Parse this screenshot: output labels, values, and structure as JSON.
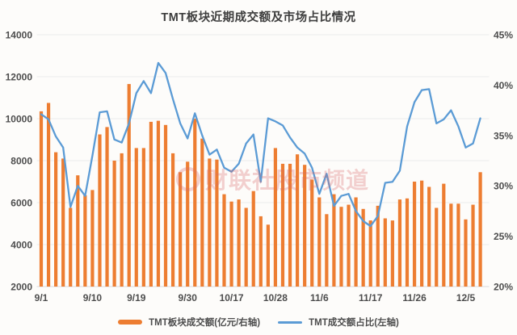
{
  "title": "TMT板块近期成交额及市场占比情况",
  "watermark": {
    "text": "财联社股市频道"
  },
  "colors": {
    "bar": "#ED7D31",
    "line": "#5B9BD5",
    "grid": "#ECECEC",
    "baseline": "#D9D9D9",
    "axis_text": "#4D4D4D",
    "title_text": "#3D3D3D",
    "watermark": "#D96A6A",
    "background": "#FDFCFA"
  },
  "chart_data": {
    "type": "combo",
    "title": "TMT板块近期成交额及市场占比情况",
    "grid": true,
    "legend_position": "bottom",
    "x_tick_labels": [
      "9/1",
      "9/10",
      "9/19",
      "9/30",
      "10/17",
      "10/28",
      "11/6",
      "11/17",
      "11/26",
      "12/5"
    ],
    "x_tick_indices": [
      0,
      7,
      13,
      20,
      26,
      32,
      38,
      45,
      51,
      58
    ],
    "left_axis": {
      "min": 2000,
      "max": 14000,
      "step": 2000,
      "ticks": [
        "14000",
        "12000",
        "10000",
        "8000",
        "6000",
        "4000",
        "2000"
      ]
    },
    "right_axis": {
      "min": 20,
      "max": 45,
      "step": 5,
      "ticks": [
        "45%",
        "40%",
        "35%",
        "30%",
        "25%",
        "20%"
      ]
    },
    "series": [
      {
        "name": "TMT板块成交额(亿元/右轴)",
        "type": "bar",
        "axis": "left",
        "values": [
          10350,
          10750,
          8400,
          8100,
          5750,
          7300,
          6350,
          6600,
          9250,
          9600,
          8000,
          8350,
          11650,
          8600,
          8600,
          9850,
          9900,
          9700,
          8350,
          7450,
          7950,
          10000,
          9050,
          8100,
          8050,
          6400,
          6050,
          6150,
          5750,
          6550,
          5350,
          4950,
          8600,
          7850,
          7850,
          8300,
          7800,
          7100,
          6250,
          5450,
          6400,
          5800,
          5900,
          6250,
          5700,
          5150,
          5850,
          5250,
          5150,
          6150,
          6200,
          7000,
          7050,
          6750,
          5750,
          6900,
          5950,
          5950,
          5200,
          5900,
          7450
        ]
      },
      {
        "name": "TMT成交额占比(左轴)",
        "type": "line",
        "axis": "right",
        "values": [
          37.1,
          36.6,
          34.9,
          33.8,
          27.9,
          30.0,
          29.0,
          33.0,
          37.3,
          37.4,
          34.6,
          34.3,
          36.2,
          39.2,
          40.4,
          39.2,
          42.2,
          41.2,
          38.6,
          36.2,
          34.7,
          37.2,
          35.0,
          33.1,
          33.6,
          31.8,
          31.4,
          32.2,
          34.2,
          35.1,
          30.4,
          36.7,
          36.4,
          36.0,
          34.8,
          33.8,
          33.2,
          31.8,
          29.2,
          31.2,
          28.0,
          29.0,
          29.2,
          27.5,
          26.5,
          26.0,
          27.0,
          30.3,
          30.4,
          31.5,
          35.9,
          38.3,
          39.5,
          39.6,
          36.2,
          36.6,
          37.5,
          35.9,
          33.8,
          34.2,
          36.7
        ]
      }
    ]
  }
}
